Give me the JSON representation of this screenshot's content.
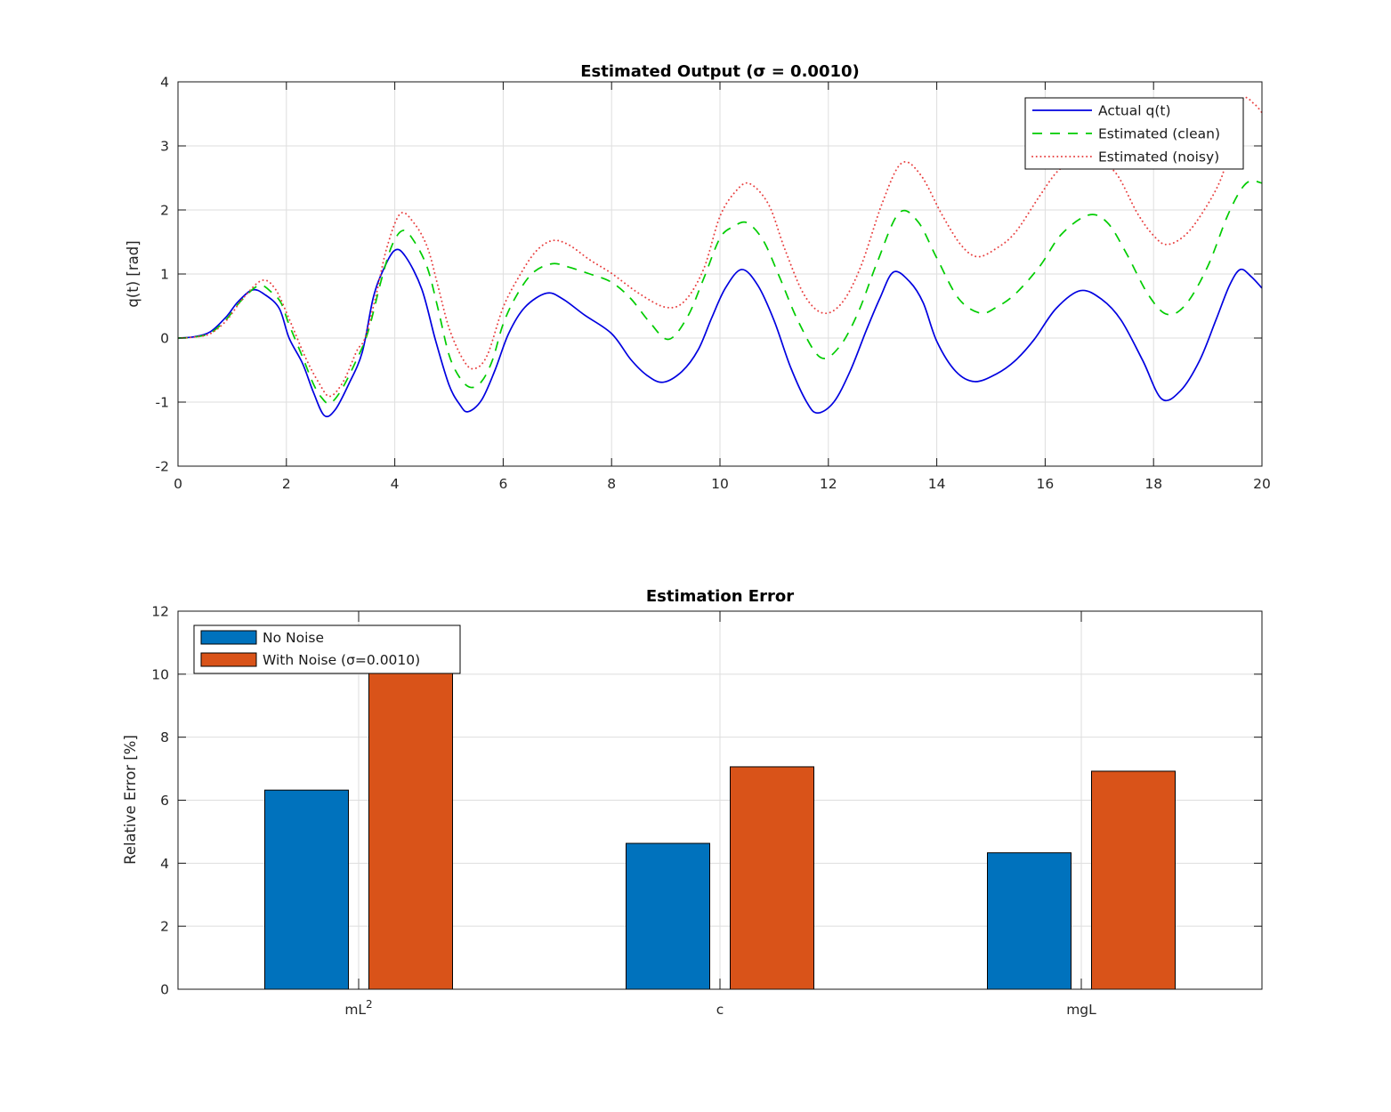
{
  "figure": {
    "background": "#ffffff",
    "text_color": "#262626",
    "grid_color": "#dedede",
    "axis_color": "#151515"
  },
  "chart_data": [
    {
      "id": "estimated-output",
      "type": "line",
      "title": "Estimated Output (σ = 0.0010)",
      "xlabel": "",
      "ylabel": "q(t) [rad]",
      "xlim": [
        0,
        20
      ],
      "ylim": [
        -2,
        4
      ],
      "xticks": [
        0,
        2,
        4,
        6,
        8,
        10,
        12,
        14,
        16,
        18,
        20
      ],
      "yticks": [
        -2,
        -1,
        0,
        1,
        2,
        3,
        4
      ],
      "grid": true,
      "legend": {
        "position": "top-right",
        "border": "#000000",
        "background": "#ffffff"
      },
      "series": [
        {
          "name": "Actual q(t)",
          "color": "#0000E0",
          "line_style": "solid",
          "points": [
            [
              0,
              0
            ],
            [
              0.3,
              0.02
            ],
            [
              0.6,
              0.1
            ],
            [
              0.9,
              0.34
            ],
            [
              1.1,
              0.56
            ],
            [
              1.37,
              0.75
            ],
            [
              1.6,
              0.68
            ],
            [
              1.87,
              0.46
            ],
            [
              2.05,
              0.0
            ],
            [
              2.3,
              -0.4
            ],
            [
              2.5,
              -0.85
            ],
            [
              2.7,
              -1.21
            ],
            [
              2.9,
              -1.12
            ],
            [
              3.15,
              -0.72
            ],
            [
              3.4,
              -0.22
            ],
            [
              3.6,
              0.62
            ],
            [
              3.78,
              1.05
            ],
            [
              4.0,
              1.37
            ],
            [
              4.2,
              1.27
            ],
            [
              4.5,
              0.76
            ],
            [
              4.75,
              -0.03
            ],
            [
              5.0,
              -0.73
            ],
            [
              5.2,
              -1.04
            ],
            [
              5.35,
              -1.15
            ],
            [
              5.6,
              -0.97
            ],
            [
              5.85,
              -0.5
            ],
            [
              6.1,
              0.07
            ],
            [
              6.4,
              0.48
            ],
            [
              6.8,
              0.7
            ],
            [
              7.1,
              0.61
            ],
            [
              7.5,
              0.36
            ],
            [
              8.0,
              0.07
            ],
            [
              8.35,
              -0.33
            ],
            [
              8.65,
              -0.58
            ],
            [
              8.95,
              -0.69
            ],
            [
              9.3,
              -0.52
            ],
            [
              9.6,
              -0.18
            ],
            [
              9.85,
              0.32
            ],
            [
              10.1,
              0.78
            ],
            [
              10.4,
              1.07
            ],
            [
              10.7,
              0.82
            ],
            [
              11.0,
              0.27
            ],
            [
              11.3,
              -0.45
            ],
            [
              11.6,
              -1.0
            ],
            [
              11.8,
              -1.17
            ],
            [
              12.1,
              -1.0
            ],
            [
              12.4,
              -0.52
            ],
            [
              12.7,
              0.12
            ],
            [
              12.95,
              0.62
            ],
            [
              13.2,
              1.03
            ],
            [
              13.5,
              0.88
            ],
            [
              13.75,
              0.55
            ],
            [
              14.0,
              -0.05
            ],
            [
              14.35,
              -0.52
            ],
            [
              14.7,
              -0.68
            ],
            [
              15.1,
              -0.56
            ],
            [
              15.45,
              -0.35
            ],
            [
              15.8,
              -0.02
            ],
            [
              16.2,
              0.46
            ],
            [
              16.65,
              0.74
            ],
            [
              17.05,
              0.6
            ],
            [
              17.4,
              0.28
            ],
            [
              17.8,
              -0.35
            ],
            [
              18.15,
              -0.95
            ],
            [
              18.5,
              -0.82
            ],
            [
              18.85,
              -0.35
            ],
            [
              19.15,
              0.28
            ],
            [
              19.4,
              0.82
            ],
            [
              19.6,
              1.07
            ],
            [
              19.8,
              0.96
            ],
            [
              20,
              0.78
            ]
          ]
        },
        {
          "name": "Estimated (clean)",
          "color": "#00CC00",
          "line_style": "dashed",
          "points": [
            [
              0,
              0
            ],
            [
              0.3,
              0.015
            ],
            [
              0.6,
              0.08
            ],
            [
              0.9,
              0.3
            ],
            [
              1.15,
              0.57
            ],
            [
              1.49,
              0.82
            ],
            [
              1.72,
              0.72
            ],
            [
              1.9,
              0.55
            ],
            [
              2.05,
              0.21
            ],
            [
              2.3,
              -0.3
            ],
            [
              2.5,
              -0.72
            ],
            [
              2.65,
              -0.93
            ],
            [
              2.8,
              -1.02
            ],
            [
              3.0,
              -0.83
            ],
            [
              3.25,
              -0.42
            ],
            [
              3.5,
              0.08
            ],
            [
              3.75,
              0.9
            ],
            [
              3.95,
              1.45
            ],
            [
              4.15,
              1.68
            ],
            [
              4.35,
              1.52
            ],
            [
              4.6,
              1.1
            ],
            [
              4.8,
              0.45
            ],
            [
              5.0,
              -0.26
            ],
            [
              5.2,
              -0.62
            ],
            [
              5.4,
              -0.77
            ],
            [
              5.6,
              -0.68
            ],
            [
              5.8,
              -0.35
            ],
            [
              6.0,
              0.22
            ],
            [
              6.25,
              0.67
            ],
            [
              6.55,
              1.02
            ],
            [
              6.9,
              1.16
            ],
            [
              7.2,
              1.11
            ],
            [
              7.6,
              1.0
            ],
            [
              8.0,
              0.87
            ],
            [
              8.35,
              0.62
            ],
            [
              8.7,
              0.25
            ],
            [
              9.05,
              -0.02
            ],
            [
              9.4,
              0.33
            ],
            [
              9.7,
              0.93
            ],
            [
              10.0,
              1.56
            ],
            [
              10.25,
              1.74
            ],
            [
              10.5,
              1.8
            ],
            [
              10.8,
              1.52
            ],
            [
              11.1,
              0.95
            ],
            [
              11.45,
              0.25
            ],
            [
              11.85,
              -0.3
            ],
            [
              12.2,
              -0.14
            ],
            [
              12.55,
              0.4
            ],
            [
              12.9,
              1.18
            ],
            [
              13.3,
              1.95
            ],
            [
              13.65,
              1.82
            ],
            [
              14.0,
              1.25
            ],
            [
              14.4,
              0.62
            ],
            [
              14.8,
              0.39
            ],
            [
              15.1,
              0.48
            ],
            [
              15.45,
              0.69
            ],
            [
              15.9,
              1.12
            ],
            [
              16.3,
              1.62
            ],
            [
              16.8,
              1.92
            ],
            [
              17.15,
              1.8
            ],
            [
              17.5,
              1.32
            ],
            [
              17.9,
              0.68
            ],
            [
              18.25,
              0.37
            ],
            [
              18.6,
              0.53
            ],
            [
              19.0,
              1.12
            ],
            [
              19.35,
              1.88
            ],
            [
              19.6,
              2.3
            ],
            [
              19.78,
              2.45
            ],
            [
              20,
              2.42
            ]
          ]
        },
        {
          "name": "Estimated (noisy)",
          "color": "#E84040",
          "line_style": "dotted",
          "points": [
            [
              0,
              0
            ],
            [
              0.3,
              0.015
            ],
            [
              0.6,
              0.07
            ],
            [
              0.9,
              0.28
            ],
            [
              1.2,
              0.62
            ],
            [
              1.55,
              0.9
            ],
            [
              1.8,
              0.76
            ],
            [
              2.05,
              0.3
            ],
            [
              2.35,
              -0.3
            ],
            [
              2.6,
              -0.7
            ],
            [
              2.8,
              -0.91
            ],
            [
              3.05,
              -0.68
            ],
            [
              3.3,
              -0.2
            ],
            [
              3.45,
              0.0
            ],
            [
              3.65,
              0.65
            ],
            [
              3.85,
              1.4
            ],
            [
              4.1,
              1.94
            ],
            [
              4.35,
              1.8
            ],
            [
              4.6,
              1.42
            ],
            [
              4.8,
              0.8
            ],
            [
              5.0,
              0.16
            ],
            [
              5.25,
              -0.32
            ],
            [
              5.45,
              -0.48
            ],
            [
              5.7,
              -0.28
            ],
            [
              6.0,
              0.48
            ],
            [
              6.3,
              0.97
            ],
            [
              6.6,
              1.35
            ],
            [
              6.9,
              1.52
            ],
            [
              7.2,
              1.46
            ],
            [
              7.6,
              1.22
            ],
            [
              8.0,
              1.01
            ],
            [
              8.5,
              0.7
            ],
            [
              9.0,
              0.48
            ],
            [
              9.35,
              0.58
            ],
            [
              9.7,
              1.08
            ],
            [
              10.0,
              1.9
            ],
            [
              10.3,
              2.3
            ],
            [
              10.55,
              2.41
            ],
            [
              10.9,
              2.08
            ],
            [
              11.2,
              1.38
            ],
            [
              11.55,
              0.68
            ],
            [
              11.9,
              0.39
            ],
            [
              12.25,
              0.55
            ],
            [
              12.6,
              1.12
            ],
            [
              13.0,
              2.12
            ],
            [
              13.35,
              2.73
            ],
            [
              13.7,
              2.55
            ],
            [
              14.1,
              1.92
            ],
            [
              14.45,
              1.45
            ],
            [
              14.75,
              1.27
            ],
            [
              15.1,
              1.4
            ],
            [
              15.45,
              1.65
            ],
            [
              15.9,
              2.22
            ],
            [
              16.25,
              2.62
            ],
            [
              16.6,
              2.75
            ],
            [
              16.9,
              2.78
            ],
            [
              17.3,
              2.58
            ],
            [
              17.7,
              1.95
            ],
            [
              18.0,
              1.6
            ],
            [
              18.25,
              1.46
            ],
            [
              18.6,
              1.62
            ],
            [
              18.95,
              2.02
            ],
            [
              19.25,
              2.5
            ],
            [
              19.45,
              3.1
            ],
            [
              19.65,
              3.72
            ],
            [
              19.85,
              3.66
            ],
            [
              20,
              3.52
            ]
          ]
        }
      ]
    },
    {
      "id": "estimation-error",
      "type": "bar",
      "title": "Estimation Error",
      "xlabel": "",
      "ylabel": "Relative Error [%]",
      "ylim": [
        0,
        12
      ],
      "yticks": [
        0,
        2,
        4,
        6,
        8,
        10,
        12
      ],
      "grid": true,
      "categories": [
        "mL²",
        "c",
        "mgL"
      ],
      "legend": {
        "position": "top-left",
        "border": "#000000",
        "background": "#ffffff"
      },
      "series": [
        {
          "name": "No Noise",
          "color": "#0072BD",
          "values": [
            6.32,
            4.63,
            4.33
          ]
        },
        {
          "name": "With Noise (σ=0.0010)",
          "color": "#D95319",
          "values": [
            10.03,
            7.06,
            6.92
          ]
        }
      ]
    }
  ]
}
